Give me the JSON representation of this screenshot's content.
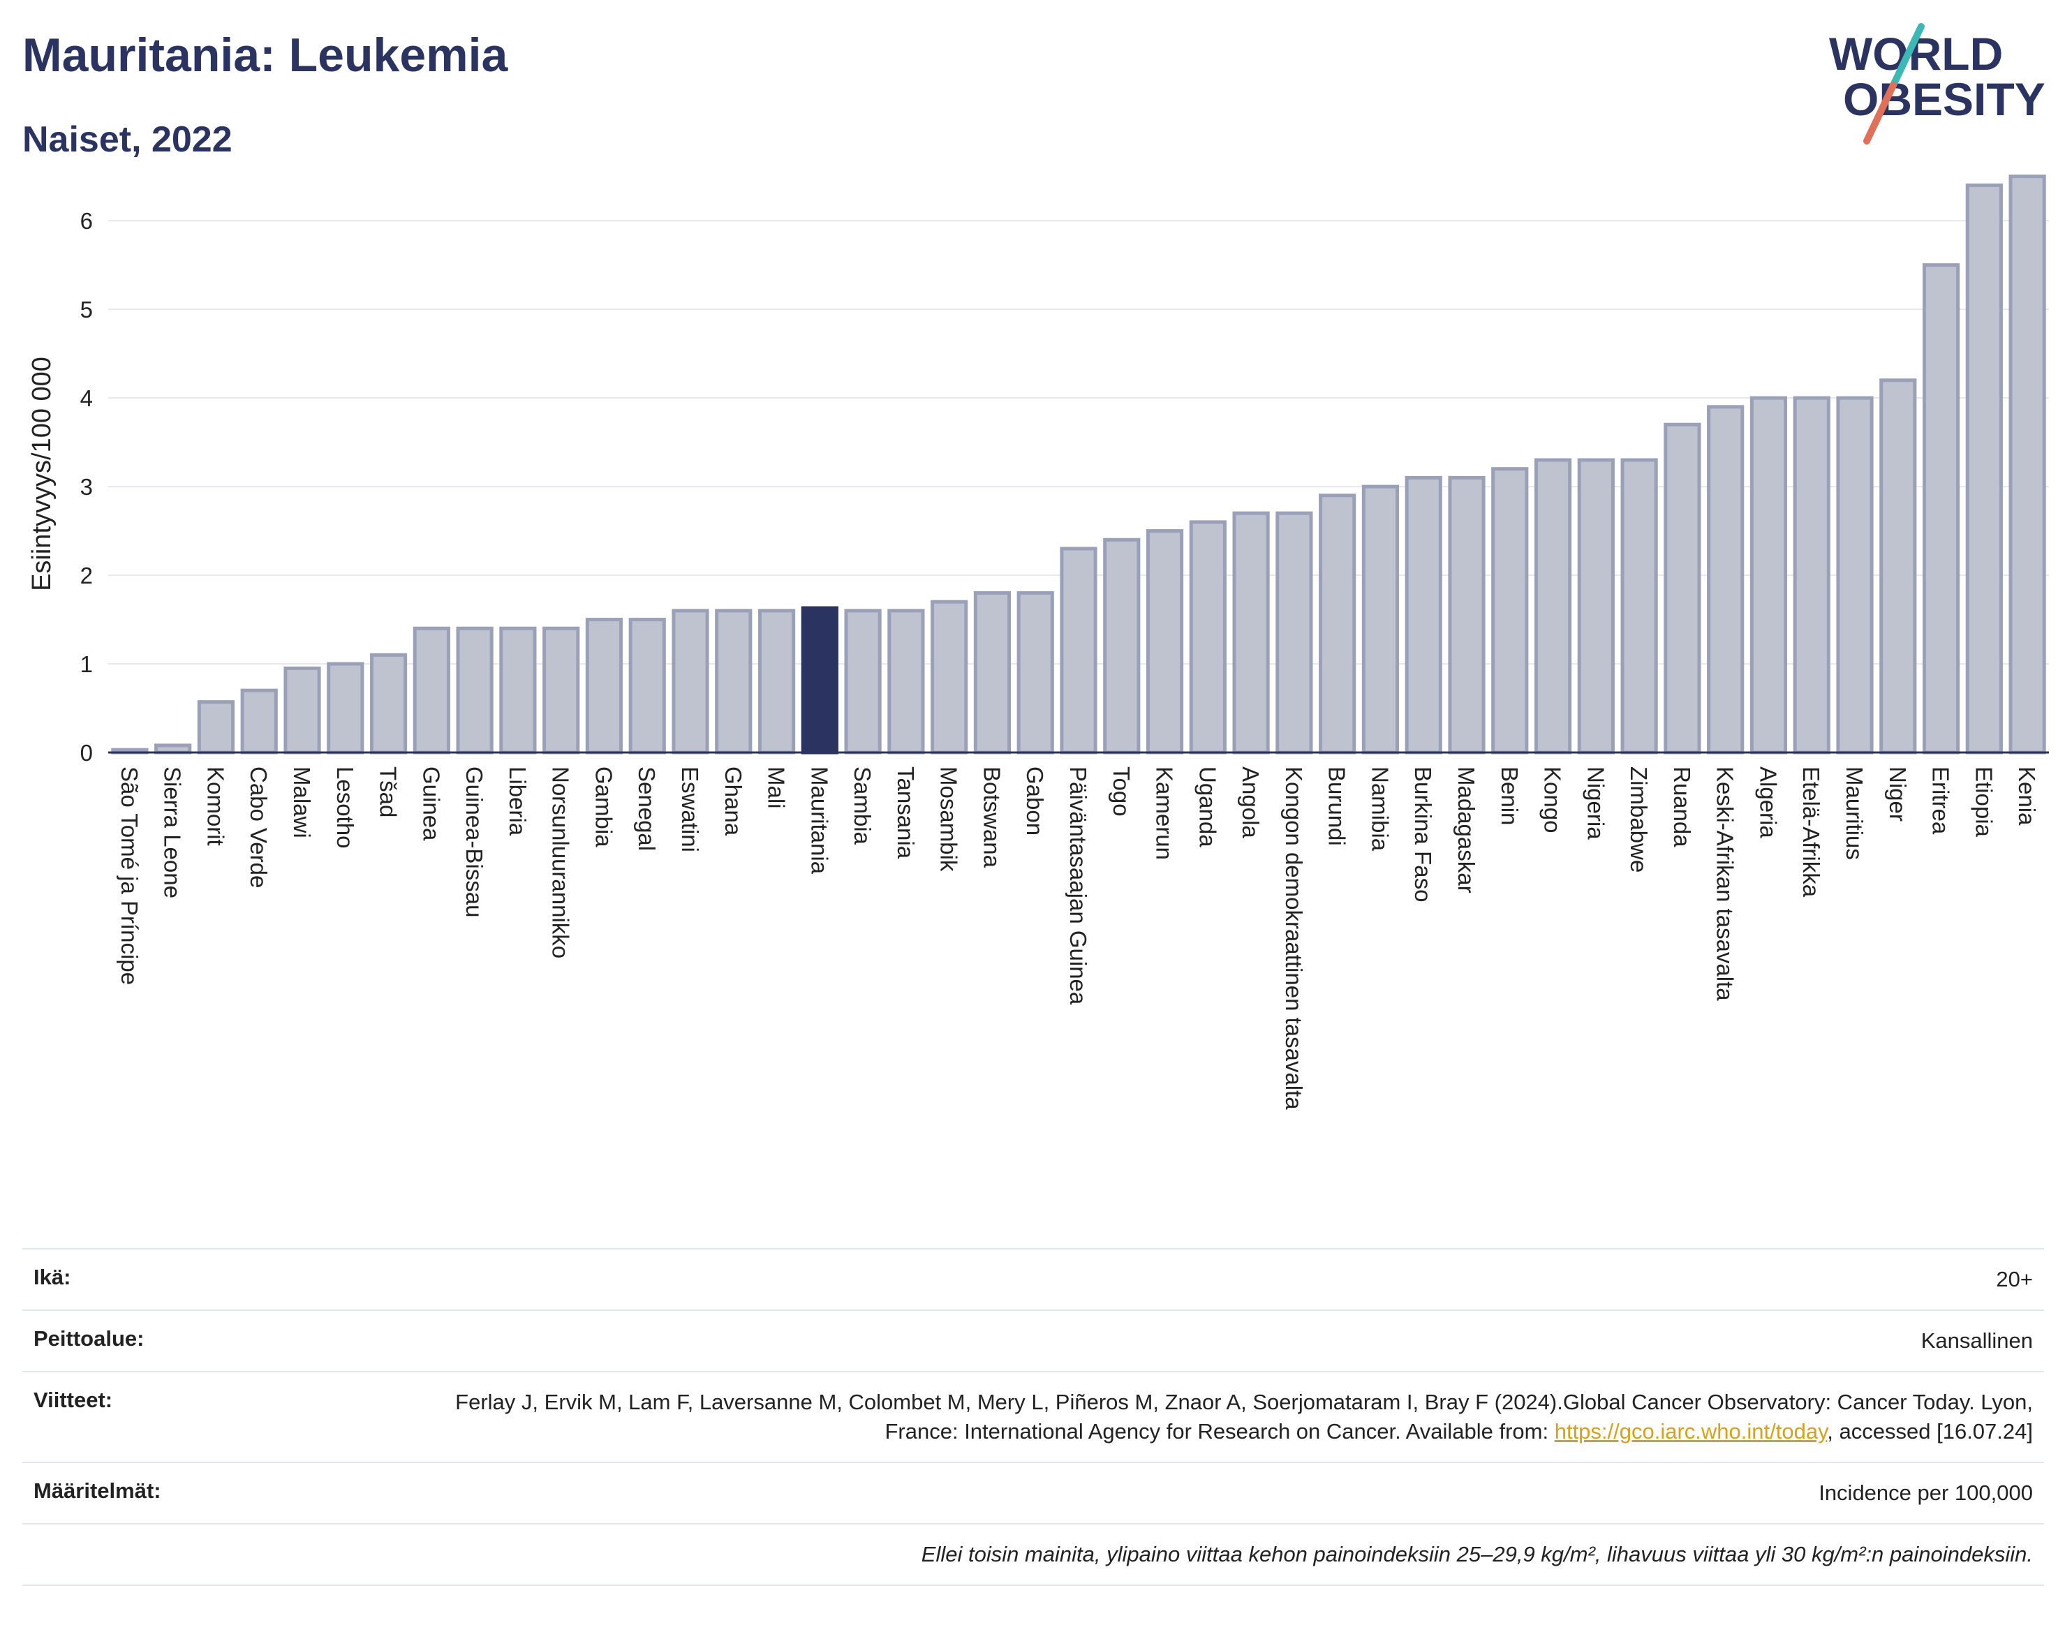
{
  "header": {
    "title": "Mauritania: Leukemia",
    "subtitle": "Naiset, 2022",
    "logo_line1": "WORLD",
    "logo_line2": "OBESITY"
  },
  "colors": {
    "title": "#2b3461",
    "bar": "#bfc3d0",
    "bar_stroke": "#9aa0b8",
    "highlight": "#2b3461",
    "logo_text": "#2b3461",
    "logo_slash_top": "#3cb8b5",
    "logo_slash_bottom": "#e0705a"
  },
  "chart_data": {
    "type": "bar",
    "title": "Mauritania: Leukemia",
    "subtitle": "Naiset, 2022",
    "ylabel": "Esiintyvyys/100 000",
    "ylim": [
      0,
      6.6
    ],
    "yticks": [
      0,
      1,
      2,
      3,
      4,
      5,
      6
    ],
    "grid": true,
    "highlight": "Mauritania",
    "categories": [
      "São Tomé ja Príncipe",
      "Sierra Leone",
      "Komorit",
      "Cabo Verde",
      "Malawi",
      "Lesotho",
      "Tšad",
      "Guinea",
      "Guinea-Bissau",
      "Liberia",
      "Norsunluurannikko",
      "Gambia",
      "Senegal",
      "Eswatini",
      "Ghana",
      "Mali",
      "Mauritania",
      "Sambia",
      "Tansania",
      "Mosambik",
      "Botswana",
      "Gabon",
      "Päiväntasaajan Guinea",
      "Togo",
      "Kamerun",
      "Uganda",
      "Angola",
      "Kongon demokraattinen tasavalta",
      "Burundi",
      "Namibia",
      "Burkina Faso",
      "Madagaskar",
      "Benin",
      "Kongo",
      "Nigeria",
      "Zimbabwe",
      "Ruanda",
      "Keski-Afrikan tasavalta",
      "Algeria",
      "Etelä-Afrikka",
      "Mauritius",
      "Niger",
      "Eritrea",
      "Etiopia",
      "Kenia"
    ],
    "values": [
      0.03,
      0.08,
      0.57,
      0.7,
      0.95,
      1.0,
      1.1,
      1.4,
      1.4,
      1.4,
      1.4,
      1.5,
      1.5,
      1.6,
      1.6,
      1.6,
      1.63,
      1.6,
      1.6,
      1.7,
      1.8,
      1.8,
      2.3,
      2.4,
      2.5,
      2.6,
      2.7,
      2.7,
      2.9,
      3.0,
      3.1,
      3.1,
      3.2,
      3.3,
      3.3,
      3.3,
      3.7,
      3.9,
      4.0,
      4.0,
      4.0,
      4.2,
      5.5,
      6.4,
      6.5
    ]
  },
  "meta": {
    "age_label": "Ikä:",
    "age_value": "20+",
    "coverage_label": "Peittoalue:",
    "coverage_value": "Kansallinen",
    "refs_label": "Viitteet:",
    "refs_text_1": "Ferlay J, Ervik M, Lam F, Laversanne M, Colombet M, Mery L, Piñeros M, Znaor A, Soerjomataram I, Bray F (2024).Global Cancer Observatory: Cancer Today. Lyon, France: International Agency for Research on Cancer. Available from: ",
    "refs_link": "https://gco.iarc.who.int/today",
    "refs_text_2": ", accessed [16.07.24]",
    "defs_label": "Määritelmät:",
    "defs_value": "Incidence per 100,000",
    "note": "Ellei toisin mainita, ylipaino viittaa kehon painoindeksiin 25–29,9 kg/m², lihavuus viittaa yli 30 kg/m²:n painoindeksiin."
  }
}
